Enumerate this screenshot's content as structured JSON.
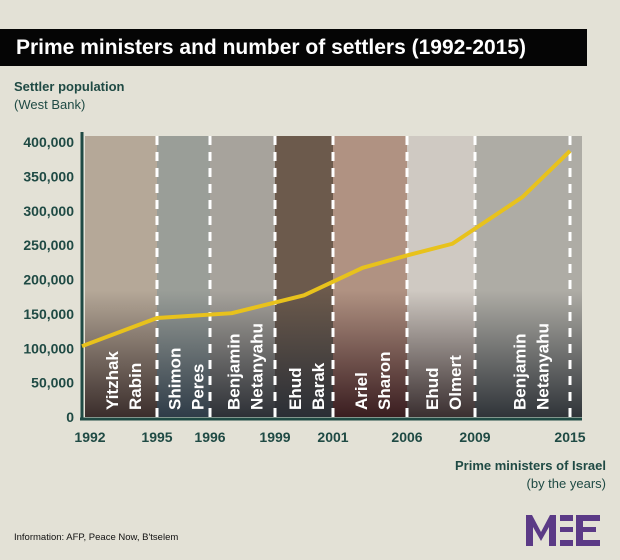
{
  "title": "Prime ministers and number of settlers (1992-2015)",
  "source": "Information: AFP, Peace Now, B'tselem",
  "logo_text": "MEE",
  "colors": {
    "background": "#e3e1d6",
    "text": "#1f4a44",
    "line": "#e8c21c",
    "logo": "#5b3a86"
  },
  "chart_data": {
    "type": "line",
    "title": "Prime ministers and number of settlers (1992-2015)",
    "ylabel": "Settler population",
    "ylabel_sub": "(West Bank)",
    "xlabel": "Prime ministers of Israel",
    "xlabel_sub": "(by the years)",
    "ylim": [
      0,
      400000
    ],
    "yticks": [
      "0",
      "50,000",
      "100,000",
      "150,000",
      "200,000",
      "250,000",
      "300,000",
      "350,000",
      "400,000"
    ],
    "xticks": [
      "1992",
      "1995",
      "1996",
      "1999",
      "2001",
      "2006",
      "2009",
      "2015"
    ],
    "grid": false,
    "series": [
      {
        "name": "Settler population",
        "x": [
          1992,
          1995,
          1997,
          2000,
          2003,
          2006,
          2008,
          2012,
          2015
        ],
        "values": [
          103000,
          144000,
          151000,
          177000,
          217000,
          235000,
          252000,
          320000,
          387000
        ]
      }
    ],
    "prime_ministers": [
      {
        "first": "Yitzhak",
        "last": "Rabin",
        "from": "1992",
        "to": "1995"
      },
      {
        "first": "Shimon",
        "last": "Peres",
        "from": "1995",
        "to": "1996"
      },
      {
        "first": "Benjamin",
        "last": "Netanyahu",
        "from": "1996",
        "to": "1999"
      },
      {
        "first": "Ehud",
        "last": "Barak",
        "from": "1999",
        "to": "2001"
      },
      {
        "first": "Ariel",
        "last": "Sharon",
        "from": "2001",
        "to": "2006"
      },
      {
        "first": "Ehud",
        "last": "Olmert",
        "from": "2006",
        "to": "2009"
      },
      {
        "first": "Benjamin",
        "last": "Netanyahu",
        "from": "2009",
        "to": "2015"
      }
    ]
  }
}
